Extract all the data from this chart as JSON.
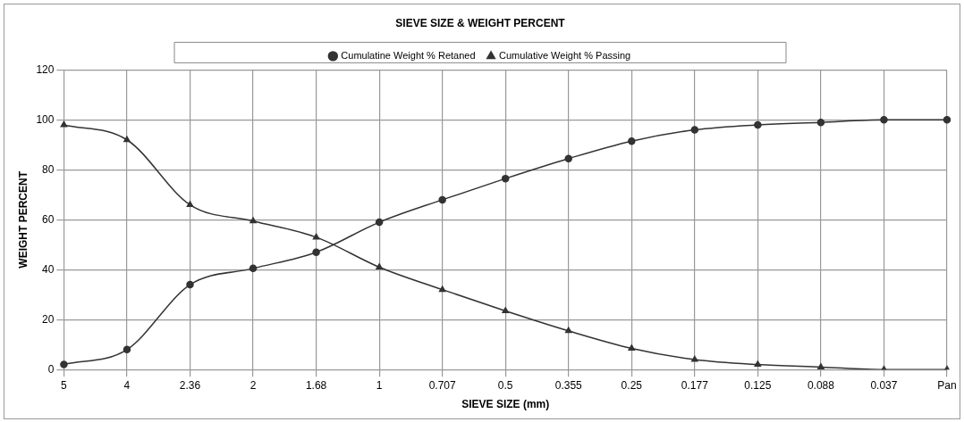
{
  "chart_data": {
    "type": "line",
    "title": "SIEVE SIZE & WEIGHT PERCENT",
    "xlabel": "SIEVE SIZE (mm)",
    "ylabel": "WEIGHT PERCENT",
    "categories": [
      "5",
      "4",
      "2.36",
      "2",
      "1.68",
      "1",
      "0.707",
      "0.5",
      "0.355",
      "0.25",
      "0.177",
      "0.125",
      "0.088",
      "0.037",
      "Pan"
    ],
    "series": [
      {
        "name": "Cumulatine Weight % Retaned",
        "color": "#333333",
        "marker": "circle",
        "values": [
          2,
          8,
          34,
          40.5,
          47,
          59,
          68,
          76.5,
          84.5,
          91.5,
          96,
          98,
          99,
          100,
          100
        ]
      },
      {
        "name": "Cumulative Weight % Passing",
        "color": "#333333",
        "marker": "triangle",
        "values": [
          98,
          92,
          66,
          59.5,
          53,
          41,
          32,
          23.5,
          15.5,
          8.5,
          4,
          2,
          1,
          0,
          0
        ]
      }
    ],
    "ylim": [
      0,
      120
    ],
    "yticks": [
      0,
      20,
      40,
      60,
      80,
      100,
      120
    ],
    "grid": true,
    "legend": "top",
    "line_style": "solid"
  }
}
